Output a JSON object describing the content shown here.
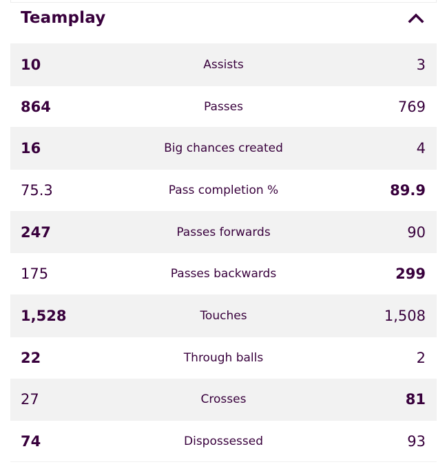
{
  "section": {
    "title": "Teamplay",
    "collapse_icon": "chevron-up-icon"
  },
  "colors": {
    "text": "#38003c",
    "row_shade": "#f2f2f2"
  },
  "stats": [
    {
      "label": "Assists",
      "home": "10",
      "away": "3",
      "bold": "home"
    },
    {
      "label": "Passes",
      "home": "864",
      "away": "769",
      "bold": "home"
    },
    {
      "label": "Big chances created",
      "home": "16",
      "away": "4",
      "bold": "home"
    },
    {
      "label": "Pass completion %",
      "home": "75.3",
      "away": "89.9",
      "bold": "away"
    },
    {
      "label": "Passes forwards",
      "home": "247",
      "away": "90",
      "bold": "home"
    },
    {
      "label": "Passes backwards",
      "home": "175",
      "away": "299",
      "bold": "away"
    },
    {
      "label": "Touches",
      "home": "1,528",
      "away": "1,508",
      "bold": "home"
    },
    {
      "label": "Through balls",
      "home": "22",
      "away": "2",
      "bold": "home"
    },
    {
      "label": "Crosses",
      "home": "27",
      "away": "81",
      "bold": "away"
    },
    {
      "label": "Dispossessed",
      "home": "74",
      "away": "93",
      "bold": "home"
    }
  ]
}
